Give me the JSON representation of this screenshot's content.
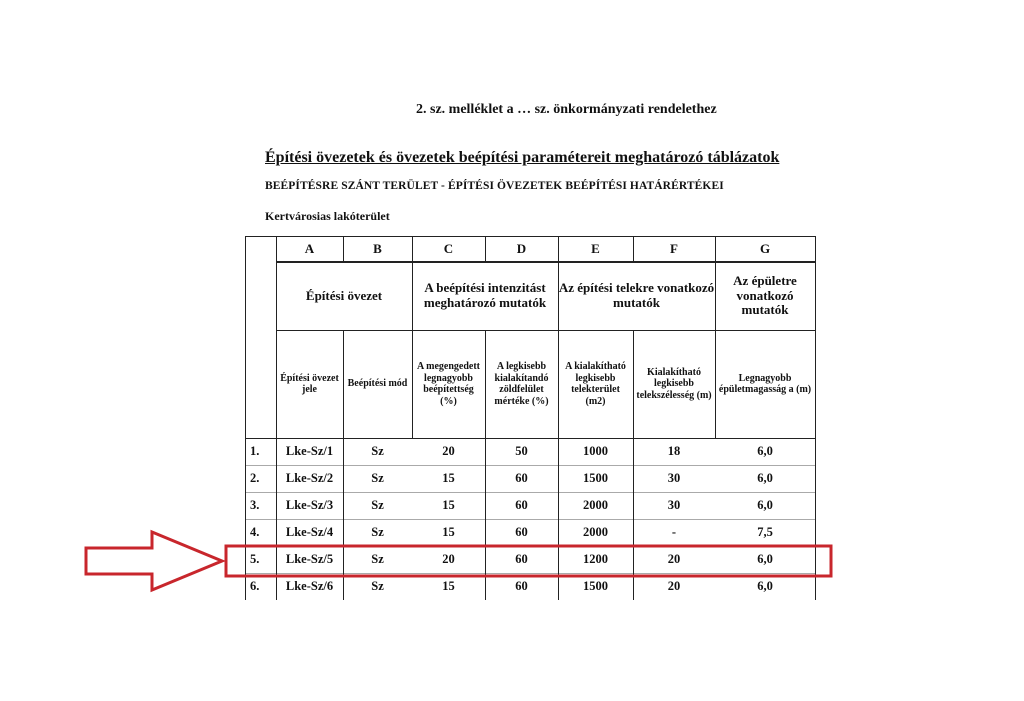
{
  "document": {
    "annex_heading": "2.   sz. melléklet a … sz. önkormányzati rendelethez",
    "title": "Építési övezetek és övezetek beépítési paramétereit meghatározó táblázatok",
    "subtitle": "BEÉPÍTÉSRE SZÁNT TERÜLET - ÉPÍTÉSI ÖVEZETEK BEÉPÍTÉSI HATÁRÉRTÉKEI",
    "area_label": "Kertvárosias lakóterület"
  },
  "table": {
    "column_letters": [
      "A",
      "B",
      "C",
      "D",
      "E",
      "F",
      "G"
    ],
    "group_headers": [
      "Építési övezet",
      "A beépítési intenzitást meghatározó mutatók",
      "Az építési telekre vonatkozó mutatók",
      "Az épületre vonatkozó mutatók"
    ],
    "sub_headers": [
      "Építési övezet jele",
      "Beépítési mód",
      "A megengedett legnagyobb beépítettség (%)",
      "A legkisebb kialakítandó zöldfelület mértéke (%)",
      "A kialakítható legkisebb telekterület (m2)",
      "Kialakítható legkisebb telekszélesség (m)",
      "Legnagyobb épületmagasság a (m)"
    ],
    "rows": [
      [
        "1.",
        "Lke-Sz/1",
        "Sz",
        "20",
        "50",
        "1000",
        "18",
        "6,0"
      ],
      [
        "2.",
        "Lke-Sz/2",
        "Sz",
        "15",
        "60",
        "1500",
        "30",
        "6,0"
      ],
      [
        "3.",
        "Lke-Sz/3",
        "Sz",
        "15",
        "60",
        "2000",
        "30",
        "6,0"
      ],
      [
        "4.",
        "Lke-Sz/4",
        "Sz",
        "15",
        "60",
        "2000",
        "-",
        "7,5"
      ],
      [
        "5.",
        "Lke-Sz/5",
        "Sz",
        "20",
        "60",
        "1200",
        "20",
        "6,0"
      ],
      [
        "6.",
        "Lke-Sz/6",
        "Sz",
        "15",
        "60",
        "1500",
        "20",
        "6,0"
      ]
    ],
    "highlighted_row": 5
  },
  "annotation": {
    "color": "#c8262c",
    "arrow_icon": "right-arrow-outline"
  }
}
